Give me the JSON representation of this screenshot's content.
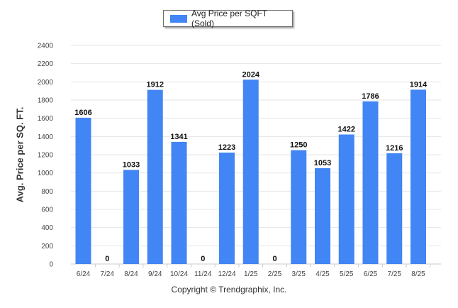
{
  "chart_data": {
    "type": "bar",
    "categories": [
      "6/24",
      "7/24",
      "8/24",
      "9/24",
      "10/24",
      "11/24",
      "12/24",
      "1/25",
      "2/25",
      "3/25",
      "4/25",
      "5/25",
      "6/25",
      "7/25",
      "8/25"
    ],
    "series": [
      {
        "name": "Avg Price per SQFT (Sold)",
        "values": [
          1606,
          0,
          1033,
          1912,
          1341,
          0,
          1223,
          2024,
          0,
          1250,
          1053,
          1422,
          1786,
          1216,
          1914
        ],
        "color": "#4285f4"
      }
    ],
    "ylabel": "Avg. Price per SQ. FT.",
    "ylim": [
      0,
      2400
    ],
    "yticks": [
      0,
      200,
      400,
      600,
      800,
      1000,
      1200,
      1400,
      1600,
      1800,
      2000,
      2200,
      2400
    ],
    "grid": true,
    "legend": "top-center"
  },
  "footer": "Copyright © Trendgraphix, Inc."
}
